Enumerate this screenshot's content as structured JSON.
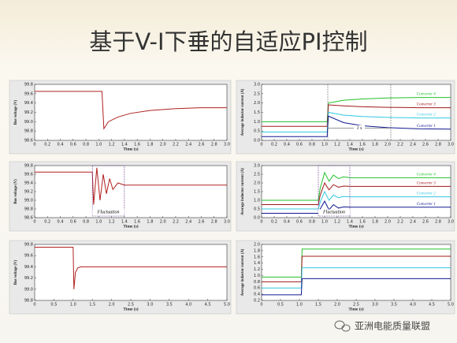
{
  "slide_title": "基于V-I下垂的自适应PI控制",
  "watermark": "亚洲电能质量联盟",
  "chart_data": [
    {
      "type": "line",
      "xlabel": "Time (s)",
      "ylabel": "Bus voltage (V)",
      "xlim": [
        0,
        3
      ],
      "xticks": [
        0,
        0.2,
        0.4,
        0.6,
        0.8,
        {
          "value": 1,
          "label": "1.0"
        },
        1.2,
        1.4,
        1.6,
        1.8,
        {
          "value": 2,
          "label": "2.0"
        },
        2.2,
        2.4,
        2.6,
        2.8,
        {
          "value": 3,
          "label": "3.0"
        }
      ],
      "ylim": [
        98.6,
        99.8
      ],
      "yticks": [
        98.6,
        98.8,
        {
          "value": 99,
          "label": "99.0"
        },
        99.2,
        99.4,
        99.6,
        99.8
      ],
      "x": [
        0,
        1.05,
        1.08,
        1.15,
        1.3,
        1.5,
        1.8,
        2.2,
        2.6,
        3.0
      ],
      "series": [
        {
          "color": "#b02020",
          "values": [
            99.65,
            99.65,
            98.85,
            99.0,
            99.1,
            99.18,
            99.24,
            99.28,
            99.3,
            99.3
          ]
        }
      ]
    },
    {
      "type": "line",
      "xlabel": "Time (s)",
      "ylabel": "Average inductor current (A)",
      "annotation": "1 s",
      "xlim": [
        0,
        3
      ],
      "xticks": [
        0,
        0.2,
        0.4,
        0.6,
        0.8,
        {
          "value": 1,
          "label": "1.0"
        },
        1.2,
        1.4,
        1.6,
        1.8,
        {
          "value": 2,
          "label": "2.0"
        },
        2.2,
        2.4,
        2.6,
        2.8,
        {
          "value": 3,
          "label": "3.0"
        }
      ],
      "ylim": [
        0,
        3
      ],
      "yticks": [
        {
          "value": 0,
          "label": "0.0"
        },
        0.5,
        {
          "value": 1,
          "label": "1.0"
        },
        1.5,
        {
          "value": 2,
          "label": "2.0"
        },
        2.5,
        {
          "value": 3,
          "label": "3.0"
        }
      ],
      "x": [
        0,
        1.04,
        1.06,
        1.3,
        1.6,
        2.0,
        2.5,
        3.0
      ],
      "series": [
        {
          "name": "Converter 4",
          "color": "#22c02a",
          "values": [
            1.0,
            1.0,
            2.0,
            2.15,
            2.22,
            2.27,
            2.3,
            2.3
          ]
        },
        {
          "name": "Converter 3",
          "color": "#a01818",
          "values": [
            0.75,
            0.75,
            1.9,
            1.85,
            1.8,
            1.77,
            1.75,
            1.75
          ]
        },
        {
          "name": "Converter 2",
          "color": "#30c8e0",
          "values": [
            0.45,
            0.45,
            1.5,
            1.35,
            1.28,
            1.23,
            1.2,
            1.2
          ]
        },
        {
          "name": "Converter 1",
          "color": "#101890",
          "values": [
            0.2,
            0.2,
            1.3,
            0.95,
            0.78,
            0.68,
            0.62,
            0.6
          ]
        }
      ]
    },
    {
      "type": "line",
      "xlabel": "Time (s)",
      "ylabel": "Bus voltage (V)",
      "annotation": "Fluctuation",
      "xlim": [
        0,
        3
      ],
      "xticks": [
        0,
        0.2,
        0.4,
        0.6,
        0.8,
        {
          "value": 1,
          "label": "1.0"
        },
        1.2,
        1.4,
        1.6,
        1.8,
        {
          "value": 2,
          "label": "2.0"
        },
        2.2,
        2.4,
        2.6,
        2.8,
        {
          "value": 3,
          "label": "3.0"
        }
      ],
      "ylim": [
        98.6,
        99.8
      ],
      "yticks": [
        98.6,
        98.8,
        {
          "value": 99,
          "label": "99.0"
        },
        99.2,
        99.4,
        99.6,
        99.8
      ],
      "x": [
        0,
        0.9,
        0.92,
        0.97,
        1.02,
        1.07,
        1.12,
        1.17,
        1.22,
        1.3,
        1.4,
        2,
        3
      ],
      "series": [
        {
          "color": "#b02020",
          "values": [
            99.65,
            99.65,
            98.9,
            99.75,
            99.0,
            99.6,
            99.15,
            99.5,
            99.25,
            99.4,
            99.35,
            99.35,
            99.35
          ]
        }
      ]
    },
    {
      "type": "line",
      "xlabel": "Time (s)",
      "ylabel": "Average inductor current (A)",
      "annotation": "Fluctuation",
      "xlim": [
        0,
        3
      ],
      "xticks": [
        0,
        0.2,
        0.4,
        0.6,
        0.8,
        {
          "value": 1,
          "label": "1.0"
        },
        1.2,
        1.4,
        1.6,
        1.8,
        {
          "value": 2,
          "label": "2.0"
        },
        2.2,
        2.4,
        2.6,
        2.8,
        {
          "value": 3,
          "label": "3.0"
        }
      ],
      "ylim": [
        0,
        3
      ],
      "yticks": [
        {
          "value": 0,
          "label": "0.0"
        },
        0.5,
        {
          "value": 1,
          "label": "1.0"
        },
        1.5,
        {
          "value": 2,
          "label": "2.0"
        },
        2.5,
        {
          "value": 3,
          "label": "3.0"
        }
      ],
      "x": [
        0,
        0.9,
        0.93,
        1.0,
        1.07,
        1.14,
        1.22,
        1.3,
        1.4,
        2,
        3
      ],
      "series": [
        {
          "name": "Converter 4",
          "color": "#22c02a",
          "values": [
            1.0,
            1.0,
            1.7,
            2.6,
            2.1,
            2.45,
            2.25,
            2.35,
            2.3,
            2.3,
            2.3
          ]
        },
        {
          "name": "Converter 3",
          "color": "#a01818",
          "values": [
            0.75,
            0.75,
            1.3,
            2.0,
            1.6,
            1.9,
            1.75,
            1.82,
            1.8,
            1.8,
            1.8
          ]
        },
        {
          "name": "Converter 2",
          "color": "#30c8e0",
          "values": [
            0.5,
            0.5,
            0.9,
            1.5,
            1.0,
            1.3,
            1.15,
            1.22,
            1.2,
            1.2,
            1.2
          ]
        },
        {
          "name": "Converter 1",
          "color": "#101890",
          "values": [
            0.25,
            0.25,
            0.5,
            0.95,
            0.45,
            0.75,
            0.55,
            0.62,
            0.6,
            0.6,
            0.6
          ]
        }
      ]
    },
    {
      "type": "line",
      "xlabel": "Time (s)",
      "ylabel": "Bus voltage (V)",
      "xlim": [
        0,
        5
      ],
      "xticks": [
        0,
        0.5,
        {
          "value": 1,
          "label": "1.0"
        },
        1.5,
        {
          "value": 2,
          "label": "2.0"
        },
        2.5,
        {
          "value": 3,
          "label": "3.0"
        },
        3.5,
        {
          "value": 4,
          "label": "4.0"
        },
        4.5,
        {
          "value": 5,
          "label": "5.0"
        }
      ],
      "ylim": [
        98.8,
        99.8
      ],
      "yticks": [
        98.8,
        {
          "value": 99,
          "label": "99.0"
        },
        99.2,
        99.4,
        99.6,
        99.8
      ],
      "x": [
        0,
        1.0,
        1.02,
        1.06,
        1.12,
        1.2,
        1.5,
        5
      ],
      "series": [
        {
          "color": "#b02020",
          "values": [
            99.75,
            99.75,
            99.0,
            99.3,
            99.38,
            99.4,
            99.4,
            99.4
          ]
        }
      ]
    },
    {
      "type": "line",
      "xlabel": "Time (s)",
      "ylabel": "Average inductor current (A)",
      "xlim": [
        0,
        5
      ],
      "xticks": [
        0,
        0.5,
        {
          "value": 1,
          "label": "1.0"
        },
        1.5,
        {
          "value": 2,
          "label": "2.0"
        },
        2.5,
        {
          "value": 3,
          "label": "3.0"
        },
        3.5,
        {
          "value": 4,
          "label": "4.0"
        },
        4.5,
        {
          "value": 5,
          "label": "5.0"
        }
      ],
      "ylim": [
        0.2,
        2.0
      ],
      "yticks": [
        0.2,
        0.4,
        0.6,
        0.8,
        {
          "value": 1,
          "label": "1.0"
        },
        1.2,
        1.4,
        1.6,
        1.8,
        {
          "value": 2,
          "label": "2.0"
        }
      ],
      "x": [
        0,
        1.05,
        1.07,
        5
      ],
      "series": [
        {
          "color": "#22c02a",
          "values": [
            0.95,
            0.95,
            1.85,
            1.85
          ]
        },
        {
          "color": "#a01818",
          "values": [
            0.8,
            0.8,
            1.62,
            1.62
          ]
        },
        {
          "color": "#30c8e0",
          "values": [
            0.6,
            0.6,
            1.25,
            1.25
          ]
        },
        {
          "color": "#101890",
          "values": [
            0.38,
            0.38,
            0.9,
            0.9
          ]
        }
      ]
    }
  ]
}
